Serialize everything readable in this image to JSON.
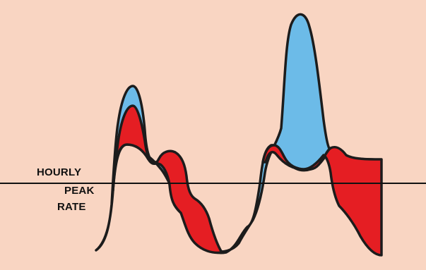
{
  "diagram": {
    "label_lines": [
      "HOURLY",
      "PEAK",
      "RATE"
    ],
    "colors": {
      "background": "#f9d5c2",
      "above_fill": "#6cbbe8",
      "below_fill": "#e51e23",
      "outline": "#1c1c1c",
      "reference_line": "#111111"
    }
  }
}
